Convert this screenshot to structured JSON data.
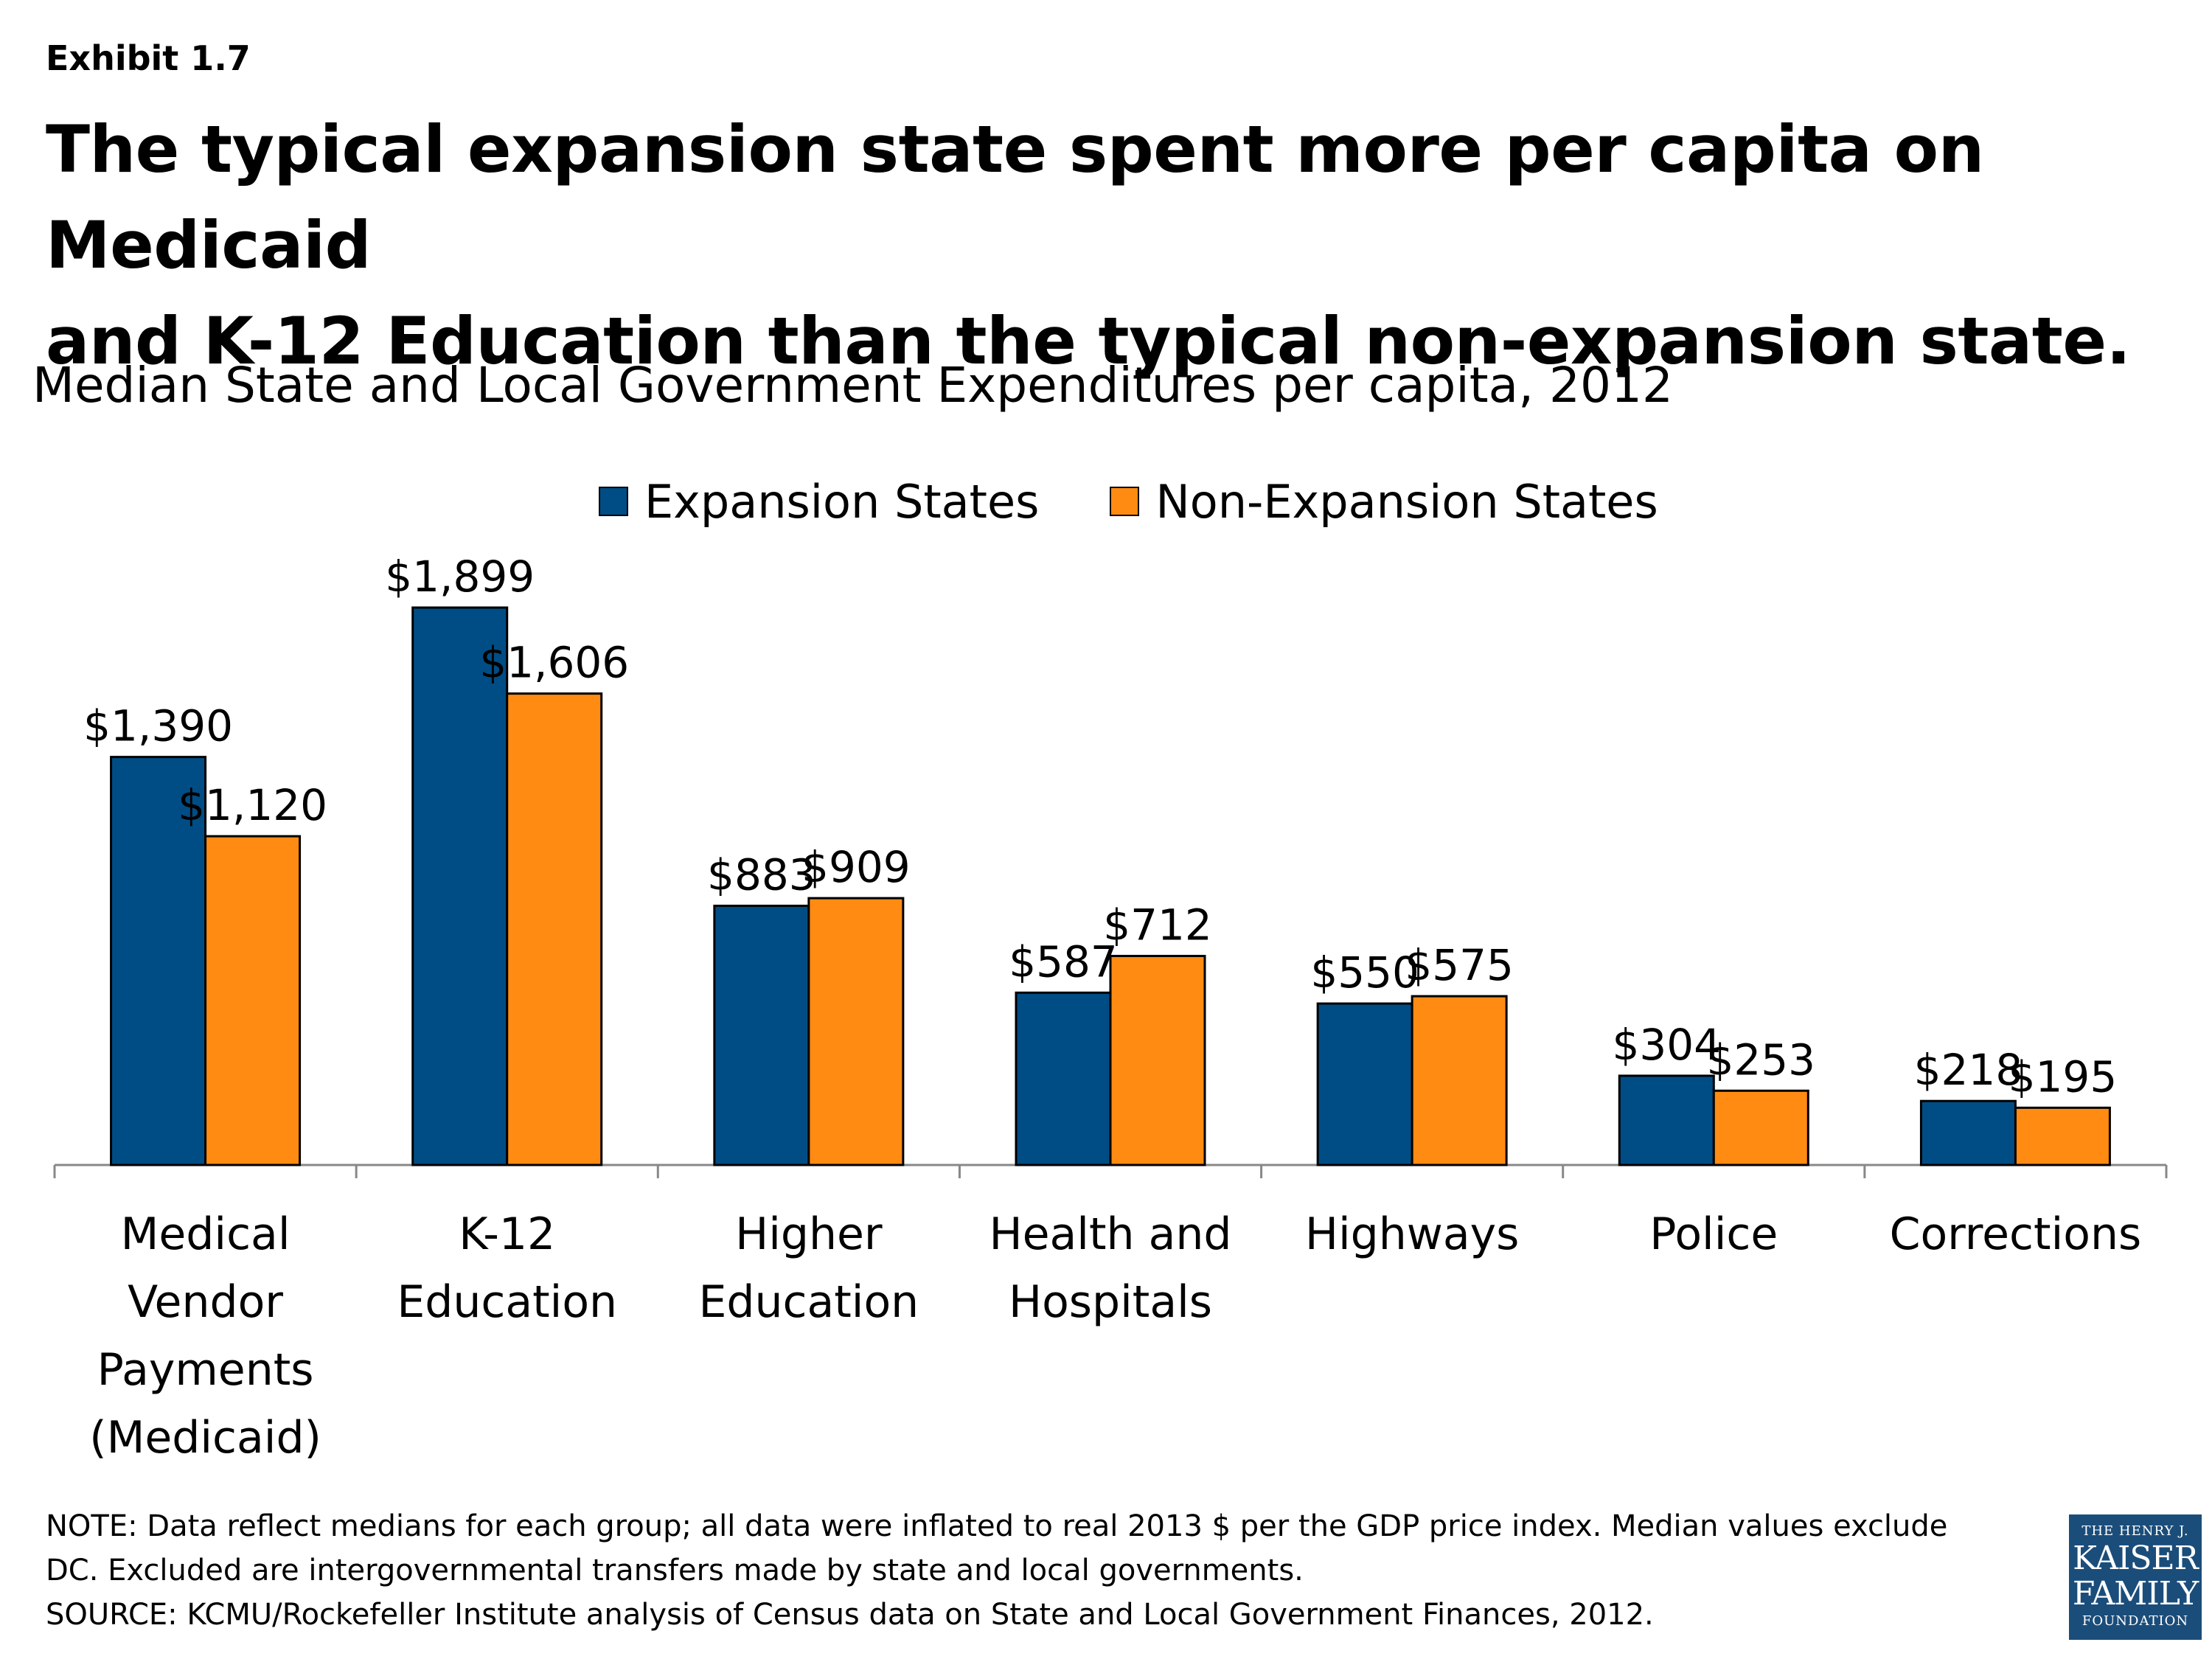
{
  "exhibit_label": "Exhibit 1.7",
  "headline_line1": "The typical expansion state spent more per capita on Medicaid",
  "headline_line2": "and K-12 Education than the typical non-expansion state.",
  "colors": {
    "expansion": "#004d85",
    "non_expansion": "#ff8b12",
    "axis": "#888888"
  },
  "chart_data": {
    "type": "bar",
    "title": "Median State and Local Government Expenditures per capita, 2012",
    "categories": [
      [
        "Medical",
        "Vendor",
        "Payments",
        "(Medicaid)"
      ],
      [
        "K-12",
        "Education"
      ],
      [
        "Higher",
        "Education"
      ],
      [
        "Health and",
        "Hospitals"
      ],
      [
        "Highways"
      ],
      [
        "Police"
      ],
      [
        "Corrections"
      ]
    ],
    "series": [
      {
        "name": "Expansion States",
        "values": [
          1390,
          1899,
          883,
          587,
          550,
          304,
          218
        ],
        "labels": [
          "$1,390",
          "$1,899",
          "$883",
          "$587",
          "$550",
          "$304",
          "$218"
        ]
      },
      {
        "name": "Non-Expansion States",
        "values": [
          1120,
          1606,
          909,
          712,
          575,
          253,
          195
        ],
        "labels": [
          "$1,120",
          "$1,606",
          "$909",
          "$712",
          "$575",
          "$253",
          "$195"
        ]
      }
    ],
    "ylim": [
      0,
      1900
    ],
    "grid": false,
    "legend": "top-center"
  },
  "notes": [
    "NOTE: Data reflect medians for each group; all data were inflated to real 2013 $ per the GDP price index. Median values exclude",
    "DC. Excluded are intergovernmental transfers made by state and local governments.",
    "SOURCE: KCMU/Rockefeller Institute analysis of Census data on State and Local Government Finances, 2012."
  ],
  "logo": {
    "line1": "THE HENRY J.",
    "line2": "KAISER",
    "line3": "FAMILY",
    "line4": "FOUNDATION"
  }
}
